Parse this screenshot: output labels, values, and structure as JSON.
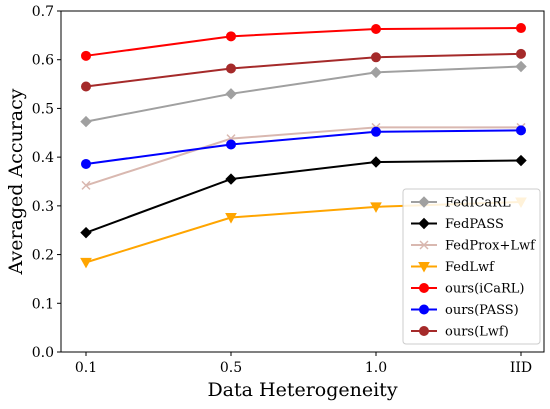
{
  "chart_data": {
    "type": "line",
    "title": "",
    "xlabel": "Data Heterogeneity",
    "ylabel": "Averaged Accuracy",
    "categories": [
      "0.1",
      "0.5",
      "1.0",
      "IID"
    ],
    "ylim": [
      0.0,
      0.7
    ],
    "yticks": [
      "0.0",
      "0.1",
      "0.2",
      "0.3",
      "0.4",
      "0.5",
      "0.6",
      "0.7"
    ],
    "grid": false,
    "legend_position": "lower-right",
    "series": [
      {
        "name": "FedICaRL",
        "values": [
          0.473,
          0.53,
          0.574,
          0.586
        ],
        "color": "#a0a0a0",
        "marker": "diamond"
      },
      {
        "name": "FedPASS",
        "values": [
          0.245,
          0.355,
          0.39,
          0.393
        ],
        "color": "#000000",
        "marker": "diamond"
      },
      {
        "name": "FedProx+Lwf",
        "values": [
          0.342,
          0.438,
          0.461,
          0.461
        ],
        "color": "#d9b8b0",
        "marker": "x"
      },
      {
        "name": "FedLwf",
        "values": [
          0.184,
          0.276,
          0.298,
          0.308
        ],
        "color": "#ffa500",
        "marker": "triangle-down"
      },
      {
        "name": "ours(iCaRL)",
        "values": [
          0.608,
          0.648,
          0.663,
          0.665
        ],
        "color": "#ff0000",
        "marker": "circle"
      },
      {
        "name": "ours(PASS)",
        "values": [
          0.386,
          0.426,
          0.452,
          0.455
        ],
        "color": "#0000ff",
        "marker": "circle"
      },
      {
        "name": "ours(Lwf)",
        "values": [
          0.545,
          0.582,
          0.605,
          0.612
        ],
        "color": "#a52a2a",
        "marker": "circle"
      }
    ]
  }
}
